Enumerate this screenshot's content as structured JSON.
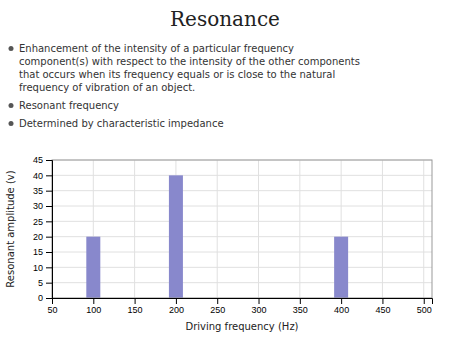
{
  "chart_data": {
    "type": "bar",
    "title": "Resonance",
    "annotations": [
      [
        "Enhancement of the intensity of a particular frequency",
        "component(s) with respect to the intensity of the other components",
        "that occurs when its frequency equals or is close to the natural",
        "frequency of vibration of an object."
      ],
      [
        "Resonant frequency"
      ],
      [
        "Determined by characteristic impedance"
      ]
    ],
    "x": [
      100,
      200,
      400
    ],
    "values": [
      20,
      40,
      20
    ],
    "color": "#8888cc",
    "xlabel": "Driving frequency (Hz)",
    "ylabel": "Resonant amplitude (v)",
    "xlim": [
      50,
      510
    ],
    "ylim": [
      0,
      45
    ],
    "xticks": [
      50,
      100,
      150,
      200,
      250,
      300,
      350,
      400,
      450,
      500
    ],
    "yticks": [
      0,
      5,
      10,
      15,
      20,
      25,
      30,
      35,
      40,
      45
    ],
    "grid": true
  }
}
